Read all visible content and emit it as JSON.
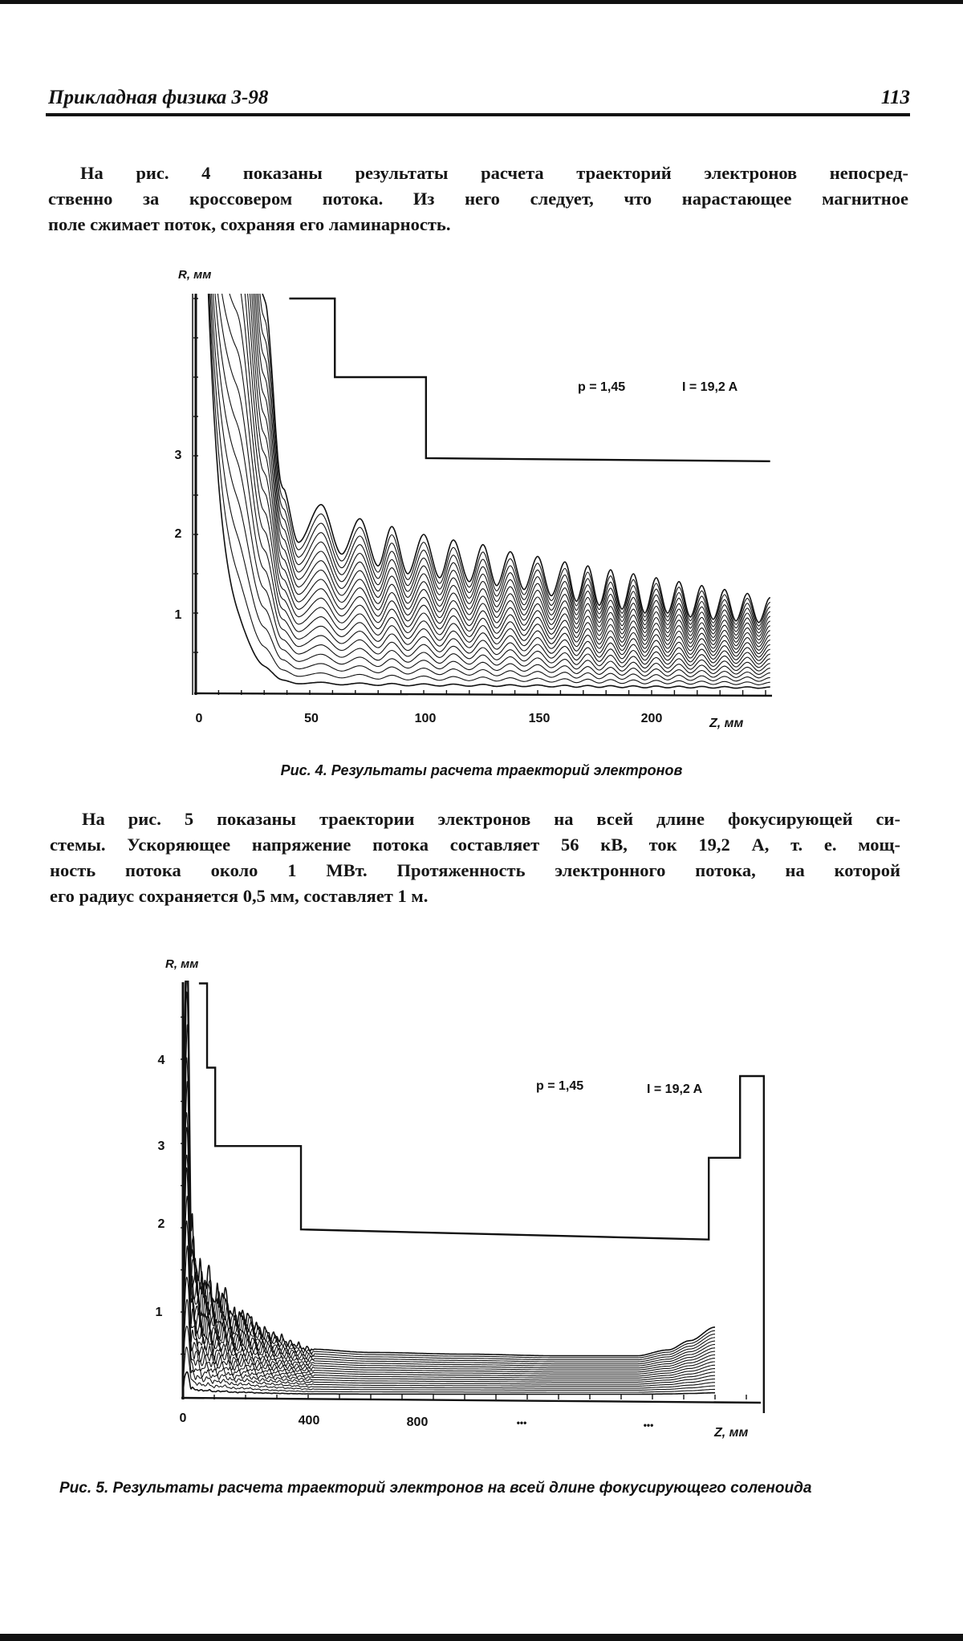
{
  "header": {
    "journal": "Прикладная физика 3-98",
    "page_number": "113"
  },
  "paragraph1": [
    "На рис. 4  показаны  результаты расчета траекторий электронов непосред-",
    "ственно за кроссовером потока. Из него следует, что нарастающее магнитное",
    "поле сжимает поток, сохраняя его ламинарность."
  ],
  "paragraph2": [
    "На рис. 5 показаны траектории электронов на всей длине фокусирующей си-",
    "стемы. Ускоряющее напряжение потока составляет 56 кВ, ток 19,2 А, т. е.  мощ-",
    "ность потока около 1 МВт.  Протяженность  электронного потока, на которой",
    "его радиус сохраняется 0,5 мм, составляет 1 м."
  ],
  "captions": {
    "fig4": "Рис. 4. Результаты расчета траекторий электронов",
    "fig5": "Рис. 5. Результаты расчета траекторий электронов на всей длине фокусирующего соленоида"
  },
  "chart_data": [
    {
      "type": "line",
      "title": "",
      "xlabel": "Z, мм",
      "ylabel": "R, мм",
      "xlim": [
        0,
        252
      ],
      "ylim": [
        0,
        5
      ],
      "x_ticks": [
        "0",
        "50",
        "100",
        "150",
        "200"
      ],
      "x_tick_values": [
        0,
        50,
        100,
        150,
        200
      ],
      "y_ticks": [
        "1",
        "2",
        "3"
      ],
      "y_tick_values": [
        1,
        2,
        3
      ],
      "annotations": [
        "p = 1,45",
        "I = 19,2 A"
      ],
      "grid": false,
      "line_color": "#111111",
      "boundary": [
        [
          41,
          5
        ],
        [
          61,
          5
        ],
        [
          61,
          4.0
        ],
        [
          101,
          4.0
        ],
        [
          101,
          2.97
        ],
        [
          252,
          2.93
        ]
      ],
      "trajectory_count": 20,
      "outer_trajectory": [
        [
          18,
          10
        ],
        [
          30,
          5
        ],
        [
          38,
          2.6
        ],
        [
          45,
          1.9
        ],
        [
          55,
          2.38
        ],
        [
          64,
          1.75
        ],
        [
          72,
          2.2
        ],
        [
          80,
          1.6
        ],
        [
          86,
          2.1
        ],
        [
          93,
          1.5
        ],
        [
          100,
          2.0
        ],
        [
          107,
          1.45
        ],
        [
          113,
          1.93
        ],
        [
          120,
          1.4
        ],
        [
          126,
          1.87
        ],
        [
          132,
          1.35
        ],
        [
          138,
          1.78
        ],
        [
          144,
          1.3
        ],
        [
          150,
          1.72
        ],
        [
          156,
          1.22
        ],
        [
          162,
          1.65
        ],
        [
          167,
          1.15
        ],
        [
          172,
          1.6
        ],
        [
          177,
          1.1
        ],
        [
          182,
          1.55
        ],
        [
          187,
          1.05
        ],
        [
          192,
          1.5
        ],
        [
          197,
          1.0
        ],
        [
          202,
          1.45
        ],
        [
          207,
          1.0
        ],
        [
          212,
          1.4
        ],
        [
          217,
          0.95
        ],
        [
          222,
          1.35
        ],
        [
          227,
          0.92
        ],
        [
          232,
          1.3
        ],
        [
          237,
          0.9
        ],
        [
          242,
          1.25
        ],
        [
          247,
          0.88
        ],
        [
          252,
          1.2
        ]
      ]
    },
    {
      "type": "line",
      "title": "",
      "xlabel": "Z, мм",
      "ylabel": "R, мм",
      "xlim": [
        0,
        1860
      ],
      "ylim": [
        0,
        4.9
      ],
      "x_ticks": [
        "0",
        "400",
        "800",
        "•••",
        "•••"
      ],
      "x_tick_values": [
        0,
        400,
        800,
        1080,
        1470
      ],
      "y_ticks": [
        "1",
        "2",
        "3",
        "4"
      ],
      "y_tick_values": [
        1,
        2,
        3,
        4
      ],
      "annotations": [
        "p = 1,45",
        "I = 19,2 A"
      ],
      "grid": false,
      "line_color": "#111111",
      "boundary": [
        [
          51,
          4.9
        ],
        [
          77,
          4.9
        ],
        [
          77,
          3.9
        ],
        [
          103,
          3.9
        ],
        [
          103,
          2.97
        ],
        [
          377,
          2.97
        ],
        [
          377,
          1.98
        ],
        [
          1680,
          1.86
        ],
        [
          1680,
          2.83
        ],
        [
          1780,
          2.83
        ],
        [
          1780,
          3.8
        ],
        [
          1856,
          3.8
        ],
        [
          1856,
          -0.2
        ]
      ],
      "trajectory_count": 20,
      "outer_trajectory": [
        [
          0,
          0.6
        ],
        [
          8,
          5.6
        ],
        [
          16,
          5.6
        ],
        [
          25,
          2.0
        ],
        [
          40,
          1.6
        ],
        [
          60,
          1.35
        ],
        [
          80,
          1.4
        ],
        [
          100,
          1.15
        ],
        [
          130,
          1.2
        ],
        [
          160,
          0.95
        ],
        [
          200,
          0.95
        ],
        [
          250,
          0.78
        ],
        [
          300,
          0.7
        ],
        [
          350,
          0.62
        ],
        [
          400,
          0.56
        ],
        [
          600,
          0.52
        ],
        [
          900,
          0.5
        ],
        [
          1200,
          0.48
        ],
        [
          1450,
          0.48
        ],
        [
          1550,
          0.55
        ],
        [
          1620,
          0.66
        ],
        [
          1700,
          0.82
        ]
      ]
    }
  ]
}
